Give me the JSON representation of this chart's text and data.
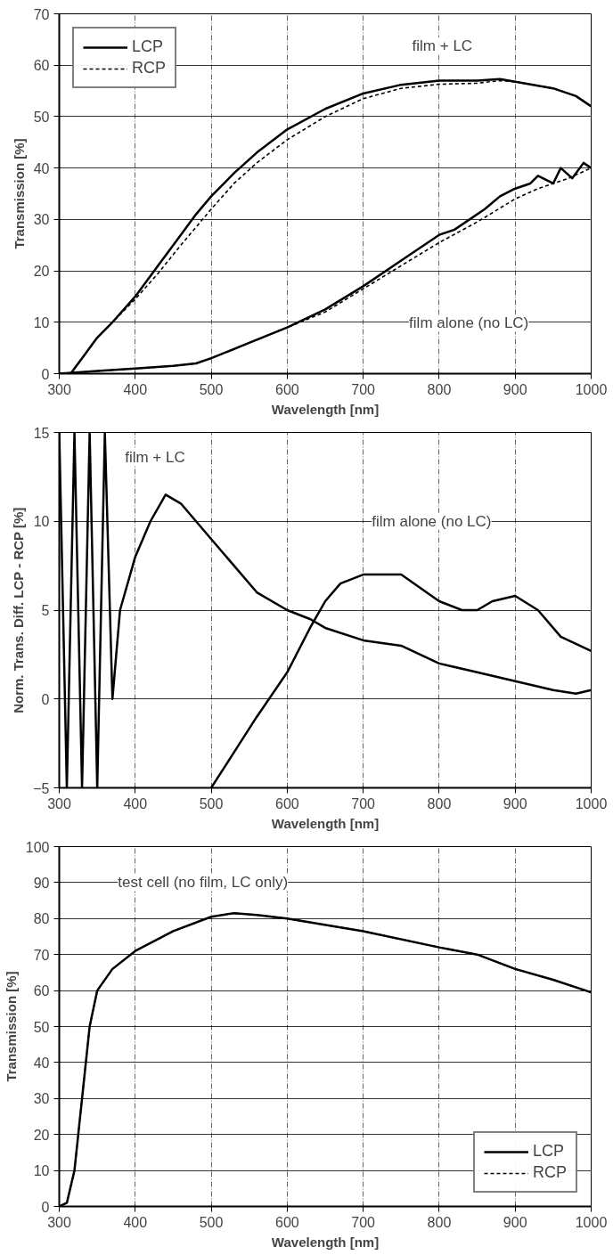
{
  "chart_data": [
    {
      "type": "line",
      "xlabel": "Wavelength [nm]",
      "ylabel": "Transmission [%]",
      "xlim": [
        300,
        1000
      ],
      "ylim": [
        0,
        70
      ],
      "xticks": [
        300,
        400,
        500,
        600,
        700,
        800,
        900,
        1000
      ],
      "yticks": [
        0,
        10,
        20,
        30,
        40,
        50,
        60,
        70
      ],
      "grid": true,
      "legend": "top left",
      "annotations": [
        "film + LC",
        "film alone (no LC)"
      ],
      "series": [
        {
          "name": "LCP",
          "color": "#000000",
          "line_style": "solid",
          "x": [
            300,
            315,
            330,
            350,
            370,
            400,
            430,
            460,
            480,
            500,
            530,
            560,
            600,
            650,
            700,
            750,
            800,
            850,
            880,
            900,
            950,
            980,
            1000
          ],
          "values": [
            0,
            0,
            3,
            7,
            10,
            15,
            21,
            27,
            31,
            34.5,
            39,
            43,
            47.5,
            51.5,
            54.5,
            56.2,
            57,
            57,
            57.3,
            56.8,
            55.5,
            54,
            52
          ]
        },
        {
          "name": "RCP",
          "color": "#000000",
          "line_style": "dashed",
          "x": [
            300,
            315,
            330,
            350,
            370,
            400,
            430,
            460,
            480,
            500,
            530,
            560,
            600,
            650,
            700,
            750,
            800,
            850,
            880,
            900,
            950,
            980,
            1000
          ],
          "values": [
            0,
            0,
            3,
            7,
            10,
            14.5,
            19.5,
            25,
            28.5,
            32,
            37,
            41,
            45.5,
            50,
            53.5,
            55.5,
            56.3,
            56.5,
            57,
            56.8,
            55.5,
            54,
            52
          ]
        },
        {
          "color": "#000000",
          "line_style": "solid",
          "x": [
            300,
            350,
            400,
            450,
            480,
            500,
            550,
            600,
            650,
            700,
            750,
            780,
            800,
            820,
            840,
            860,
            880,
            900,
            920,
            930,
            950,
            960,
            975,
            990,
            1000
          ],
          "values": [
            0,
            0.5,
            1,
            1.5,
            2,
            3,
            6,
            9,
            12.5,
            17,
            22,
            25,
            27,
            28,
            30,
            32,
            34.5,
            36,
            37,
            38.5,
            37,
            40,
            38,
            41,
            40
          ]
        },
        {
          "color": "#000000",
          "line_style": "dashed",
          "x": [
            300,
            350,
            400,
            450,
            480,
            500,
            550,
            600,
            650,
            700,
            750,
            800,
            850,
            900,
            930,
            950,
            970,
            1000
          ],
          "values": [
            0,
            0.5,
            1,
            1.5,
            2,
            3,
            6,
            9,
            12,
            16.5,
            21,
            25.5,
            29.5,
            34,
            36,
            37,
            38,
            40
          ]
        }
      ]
    },
    {
      "type": "line",
      "xlabel": "Wavelength [nm]",
      "ylabel": "Norm. Trans. Diff. LCP - RCP [%]",
      "xlim": [
        300,
        1000
      ],
      "ylim": [
        -5,
        15
      ],
      "xticks": [
        300,
        400,
        500,
        600,
        700,
        800,
        900,
        1000
      ],
      "yticks": [
        -5,
        0,
        5,
        10,
        15
      ],
      "grid": true,
      "annotations": [
        "film + LC",
        "film alone (no LC)"
      ],
      "series": [
        {
          "color": "#000000",
          "line_style": "solid",
          "x": [
            300,
            310,
            320,
            330,
            340,
            350,
            360,
            370,
            380,
            400,
            420,
            440,
            460,
            480,
            500,
            530,
            560,
            600,
            630,
            650,
            700,
            750,
            800,
            850,
            900,
            950,
            980,
            1000
          ],
          "values": [
            15,
            -5,
            15,
            -5,
            15,
            -5,
            15,
            0,
            5,
            8,
            10,
            11.5,
            11,
            10,
            9,
            7.5,
            6,
            5,
            4.5,
            4,
            3.3,
            3,
            2,
            1.5,
            1,
            0.5,
            0.3,
            0.5
          ]
        },
        {
          "color": "#000000",
          "line_style": "solid",
          "x": [
            500,
            530,
            560,
            600,
            630,
            650,
            670,
            700,
            750,
            800,
            830,
            850,
            870,
            900,
            930,
            960,
            1000
          ],
          "values": [
            -5,
            -3,
            -1,
            1.5,
            4,
            5.5,
            6.5,
            7,
            7,
            5.5,
            5,
            5,
            5.5,
            5.8,
            5,
            3.5,
            2.7
          ]
        }
      ]
    },
    {
      "type": "line",
      "xlabel": "Wavelength [nm]",
      "ylabel": "Transmission [%]",
      "xlim": [
        300,
        1000
      ],
      "ylim": [
        0,
        100
      ],
      "xticks": [
        300,
        400,
        500,
        600,
        700,
        800,
        900,
        1000
      ],
      "yticks": [
        0,
        10,
        20,
        30,
        40,
        50,
        60,
        70,
        80,
        90,
        100
      ],
      "grid": true,
      "legend": "bottom right",
      "annotations": [
        "test cell (no film, LC only)"
      ],
      "series": [
        {
          "name": "LCP",
          "color": "#000000",
          "line_style": "solid",
          "x": [
            300,
            310,
            320,
            330,
            340,
            350,
            370,
            400,
            450,
            500,
            530,
            560,
            600,
            700,
            800,
            850,
            900,
            950,
            1000
          ],
          "values": [
            0,
            1,
            10,
            30,
            50,
            60,
            66,
            71,
            76.5,
            80.5,
            81.5,
            81,
            80,
            76.5,
            72,
            70,
            66,
            63,
            59.5
          ]
        },
        {
          "name": "RCP",
          "color": "#000000",
          "line_style": "dashed",
          "x": [
            300,
            310,
            320,
            330,
            340,
            350,
            370,
            400,
            450,
            500,
            530,
            560,
            600,
            700,
            800,
            850,
            900,
            950,
            1000
          ],
          "values": [
            0,
            1,
            10,
            30,
            50,
            60,
            66,
            71,
            76.5,
            80.5,
            81.5,
            81,
            80,
            76.5,
            72,
            70,
            66,
            63,
            59.5
          ]
        }
      ]
    }
  ]
}
